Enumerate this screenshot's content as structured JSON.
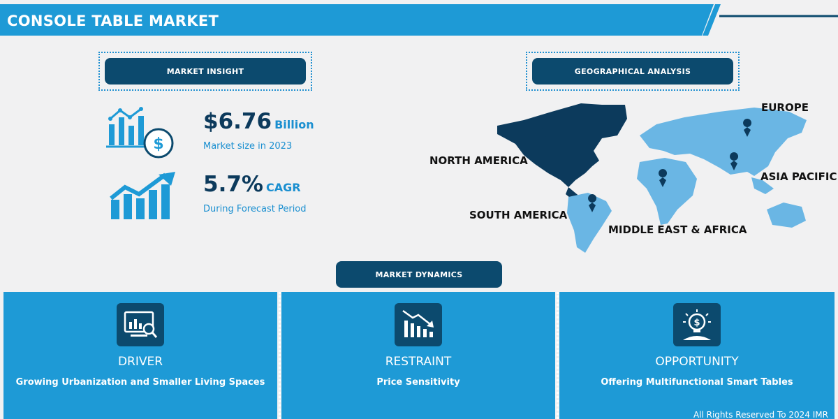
{
  "header": {
    "title": "CONSOLE TABLE MARKET"
  },
  "insight": {
    "pill_label": "MARKET INSIGHT",
    "market_size": {
      "value": "$6.76",
      "unit": "Billion",
      "caption": "Market size in 2023"
    },
    "cagr": {
      "value": "5.7%",
      "unit": "CAGR",
      "caption": "During Forecast Period"
    }
  },
  "geo": {
    "pill_label": "GEOGRAPHICAL ANALYSIS",
    "regions": {
      "north_america": "NORTH AMERICA",
      "europe": "EUROPE",
      "asia_pacific": "ASIA PACIFIC",
      "south_america": "SOUTH AMERICA",
      "mea": "MIDDLE EAST & AFRICA"
    }
  },
  "dynamics": {
    "pill_label": "MARKET DYNAMICS",
    "driver": {
      "heading": "DRIVER",
      "text": "Growing Urbanization and Smaller Living Spaces"
    },
    "restraint": {
      "heading": "RESTRAINT",
      "text": "Price Sensitivity"
    },
    "opportunity": {
      "heading": "OPPORTUNITY",
      "text": "Offering Multifunctional Smart Tables"
    }
  },
  "footer": {
    "copyright": "All Rights Reserved To 2024 IMR"
  },
  "colors": {
    "primary": "#1e9ad6",
    "dark": "#0c4a6e",
    "navy": "#0c3a5c",
    "accent_light": "#6ab6e4"
  },
  "icons": [
    "bar-chart-dollar-icon",
    "growth-arrow-icon",
    "world-map-icon",
    "map-pin-icon",
    "analytics-monitor-icon",
    "declining-chart-icon",
    "idea-bulb-dollar-icon"
  ]
}
